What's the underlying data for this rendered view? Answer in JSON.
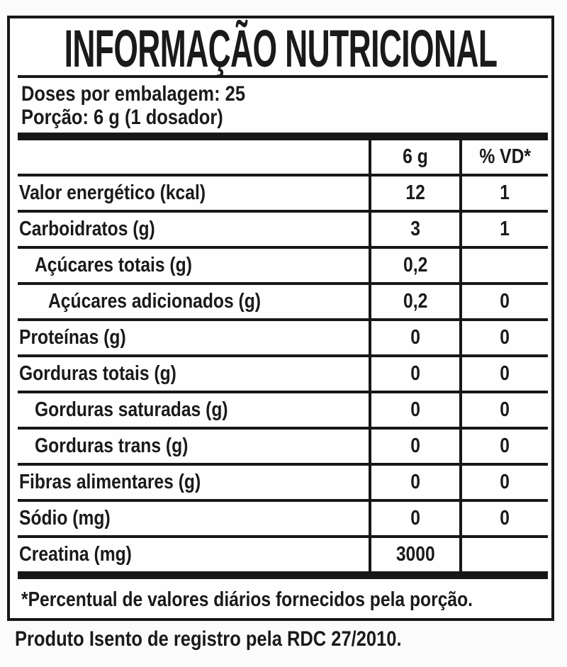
{
  "label": {
    "title": "INFORMAÇÃO NUTRICIONAL",
    "servings_line": "Doses por embalagem: 25",
    "portion_line": "Porção: 6 g (1 dosador)",
    "columns": {
      "amount": "6 g",
      "dv": "% VD*"
    },
    "rows": [
      {
        "name": "Valor energético (kcal)",
        "amount": "12",
        "dv": "1",
        "indent": 0
      },
      {
        "name": "Carboidratos (g)",
        "amount": "3",
        "dv": "1",
        "indent": 0
      },
      {
        "name": "Açúcares totais (g)",
        "amount": "0,2",
        "dv": "",
        "indent": 1
      },
      {
        "name": "Açúcares adicionados (g)",
        "amount": "0,2",
        "dv": "0",
        "indent": 2
      },
      {
        "name": "Proteínas (g)",
        "amount": "0",
        "dv": "0",
        "indent": 0
      },
      {
        "name": "Gorduras totais (g)",
        "amount": "0",
        "dv": "0",
        "indent": 0
      },
      {
        "name": "Gorduras saturadas (g)",
        "amount": "0",
        "dv": "0",
        "indent": 1
      },
      {
        "name": "Gorduras trans (g)",
        "amount": "0",
        "dv": "0",
        "indent": 1
      },
      {
        "name": "Fibras alimentares (g)",
        "amount": "0",
        "dv": "0",
        "indent": 0
      },
      {
        "name": "Sódio (mg)",
        "amount": "0",
        "dv": "0",
        "indent": 0
      },
      {
        "name": "Creatina (mg)",
        "amount": "3000",
        "dv": "",
        "indent": 0
      }
    ],
    "footnote": "*Percentual de valores diários fornecidos pela porção.",
    "registration_note": "Produto Isento de registro pela RDC 27/2010.",
    "colors": {
      "text": "#1a1a1a",
      "line": "#171717",
      "background": "#fbfbfb"
    }
  }
}
